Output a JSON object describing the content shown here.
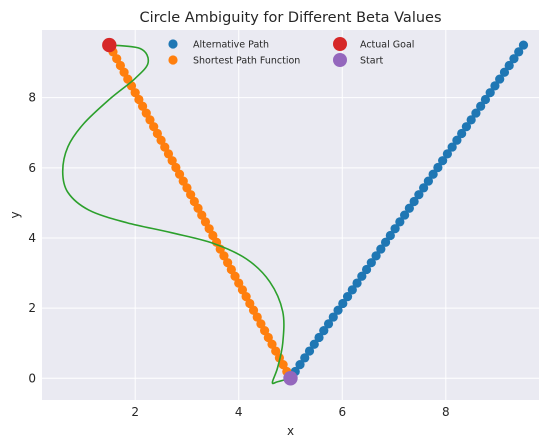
{
  "chart_data": {
    "type": "scatter",
    "title": "Circle Ambiguity for Different Beta Values",
    "xlabel": "x",
    "ylabel": "y",
    "xlim": [
      0.2,
      9.8
    ],
    "ylim": [
      -0.62,
      9.93
    ],
    "xticks": [
      2,
      4,
      6,
      8
    ],
    "yticks": [
      0,
      2,
      4,
      6,
      8
    ],
    "grid": true,
    "legend_position": "top",
    "series": [
      {
        "name": "Alternative Path",
        "kind": "scatter",
        "color": "#1f77b4",
        "start": [
          5.0,
          0.0
        ],
        "end": [
          9.5,
          9.5
        ],
        "count": 50
      },
      {
        "name": "Shortest Path Function",
        "kind": "scatter",
        "color": "#ff7f0e",
        "start": [
          5.0,
          0.0
        ],
        "end": [
          1.5,
          9.5
        ],
        "count": 50
      },
      {
        "name": "",
        "kind": "line",
        "color": "#2ca02c",
        "points": [
          [
            1.5,
            9.5
          ],
          [
            2.1,
            9.4
          ],
          [
            2.25,
            9.0
          ],
          [
            2.0,
            8.55
          ],
          [
            1.5,
            7.95
          ],
          [
            1.0,
            7.25
          ],
          [
            0.7,
            6.6
          ],
          [
            0.6,
            5.9
          ],
          [
            0.7,
            5.3
          ],
          [
            1.1,
            4.8
          ],
          [
            1.8,
            4.45
          ],
          [
            2.7,
            4.15
          ],
          [
            3.5,
            3.85
          ],
          [
            4.15,
            3.4
          ],
          [
            4.6,
            2.75
          ],
          [
            4.85,
            1.9
          ],
          [
            4.85,
            1.0
          ],
          [
            4.75,
            0.3
          ],
          [
            4.65,
            -0.12
          ],
          [
            4.75,
            -0.1
          ],
          [
            5.0,
            0.0
          ]
        ]
      },
      {
        "name": "Actual Goal",
        "kind": "marker",
        "color": "#d62728",
        "points": [
          [
            1.5,
            9.5
          ]
        ]
      },
      {
        "name": "Start",
        "kind": "marker",
        "color": "#9467bd",
        "points": [
          [
            5.0,
            0.0
          ]
        ]
      }
    ],
    "legend": [
      {
        "label": "Alternative Path",
        "color": "#1f77b4",
        "size": "small"
      },
      {
        "label": "Shortest Path Function",
        "color": "#ff7f0e",
        "size": "small"
      },
      {
        "label": "Actual Goal",
        "color": "#d62728",
        "size": "large"
      },
      {
        "label": "Start",
        "color": "#9467bd",
        "size": "large"
      }
    ]
  }
}
